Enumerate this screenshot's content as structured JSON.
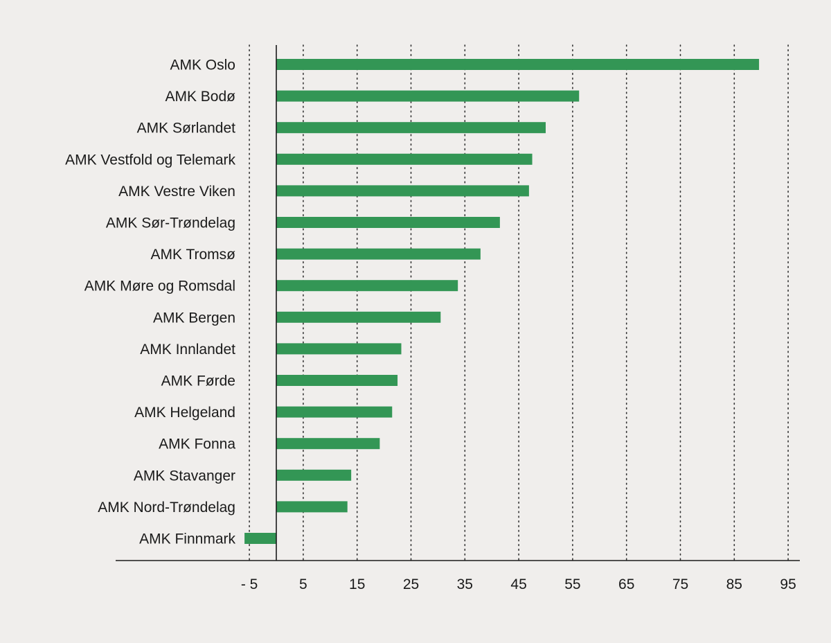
{
  "colors": {
    "background": "#f0eeec",
    "bar": "#339655",
    "axis": "#1a1a1a",
    "grid": "#333333"
  },
  "chart_data": {
    "type": "bar",
    "orientation": "horizontal",
    "title": "",
    "xlabel": "",
    "ylabel": "",
    "categories": [
      "AMK Oslo",
      "AMK Bodø",
      "AMK Sørlandet",
      "AMK Vestfold og Telemark",
      "AMK Vestre Viken",
      "AMK Sør-Trøndelag",
      "AMK Tromsø",
      "AMK Møre og Romsdal",
      "AMK Bergen",
      "AMK Innlandet",
      "AMK Førde",
      "AMK Helgeland",
      "AMK Fonna",
      "AMK Stavanger",
      "AMK Nord-Trøndelag",
      "AMK Finnmark"
    ],
    "values": [
      89.6,
      56.2,
      50.0,
      47.5,
      46.9,
      41.5,
      37.9,
      33.7,
      30.5,
      23.2,
      22.5,
      21.5,
      19.2,
      13.9,
      13.2,
      -5.9
    ],
    "xlim": [
      -10,
      97
    ],
    "xticks": [
      -5,
      5,
      15,
      25,
      35,
      45,
      55,
      65,
      75,
      85,
      95
    ],
    "xtick_labels": [
      "- 5",
      "5",
      "15",
      "25",
      "35",
      "45",
      "55",
      "65",
      "75",
      "85",
      "95"
    ],
    "grid": "vertical dotted",
    "legend": "none"
  }
}
